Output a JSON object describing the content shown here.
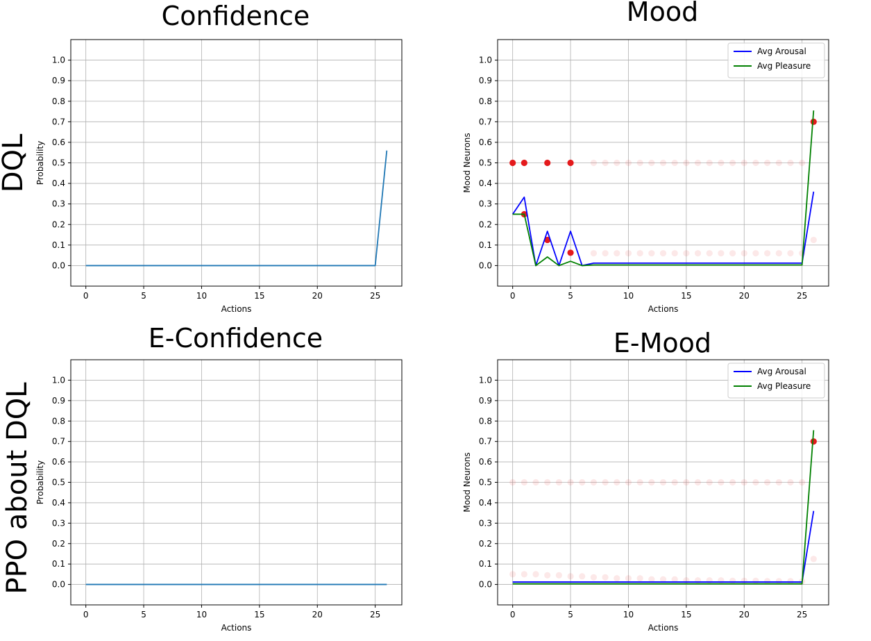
{
  "figure": {
    "row_labels": [
      "DQL",
      "PPO about DQL"
    ]
  },
  "chart_data": [
    {
      "type": "line",
      "title": "Confidence",
      "xlabel": "Actions",
      "ylabel": "Probability",
      "xlim": [
        -1.3,
        27.3
      ],
      "ylim": [
        -0.1,
        1.1
      ],
      "xticks": [
        0,
        5,
        10,
        15,
        20,
        25
      ],
      "yticks": [
        0.0,
        0.1,
        0.2,
        0.3,
        0.4,
        0.5,
        0.6,
        0.7,
        0.8,
        0.9,
        1.0
      ],
      "ytick_labels": [
        "0.0",
        "0.1",
        "0.2",
        "0.3",
        "0.4",
        "0.5",
        "0.6",
        "0.7",
        "0.8",
        "0.9",
        "1.0"
      ],
      "grid": true,
      "series": [
        {
          "color": "#1f77b4",
          "x": [
            0,
            1,
            2,
            3,
            4,
            5,
            6,
            7,
            8,
            9,
            10,
            11,
            12,
            13,
            14,
            15,
            16,
            17,
            18,
            19,
            20,
            21,
            22,
            23,
            24,
            25,
            26
          ],
          "y": [
            0,
            0,
            0,
            0,
            0,
            0,
            0,
            0,
            0,
            0,
            0,
            0,
            0,
            0,
            0,
            0,
            0,
            0,
            0,
            0,
            0,
            0,
            0,
            0,
            0,
            0,
            0.56
          ]
        }
      ]
    },
    {
      "type": "line",
      "title": "Mood",
      "xlabel": "Actions",
      "ylabel": "Mood Neurons",
      "xlim": [
        -1.3,
        27.3
      ],
      "ylim": [
        -0.1,
        1.1
      ],
      "xticks": [
        0,
        5,
        10,
        15,
        20,
        25
      ],
      "yticks": [
        0.0,
        0.1,
        0.2,
        0.3,
        0.4,
        0.5,
        0.6,
        0.7,
        0.8,
        0.9,
        1.0
      ],
      "ytick_labels": [
        "0.0",
        "0.1",
        "0.2",
        "0.3",
        "0.4",
        "0.5",
        "0.6",
        "0.7",
        "0.8",
        "0.9",
        "1.0"
      ],
      "grid": true,
      "legend": "top-right",
      "series": [
        {
          "name": "Avg Arousal",
          "color": "#0000ff",
          "x": [
            0,
            1,
            2,
            3,
            4,
            5,
            6,
            7,
            8,
            9,
            10,
            11,
            12,
            13,
            14,
            15,
            16,
            17,
            18,
            19,
            20,
            21,
            22,
            23,
            24,
            25,
            26
          ],
          "y": [
            0.25,
            0.333,
            0,
            0.167,
            0,
            0.167,
            0,
            0.012,
            0.012,
            0.012,
            0.012,
            0.012,
            0.012,
            0.012,
            0.012,
            0.012,
            0.012,
            0.012,
            0.012,
            0.012,
            0.012,
            0.012,
            0.012,
            0.012,
            0.012,
            0.012,
            0.36
          ]
        },
        {
          "name": "Avg Pleasure",
          "color": "#008000",
          "x": [
            0,
            1,
            2,
            3,
            4,
            5,
            6,
            7,
            8,
            9,
            10,
            11,
            12,
            13,
            14,
            15,
            16,
            17,
            18,
            19,
            20,
            21,
            22,
            23,
            24,
            25,
            26
          ],
          "y": [
            0.25,
            0.25,
            0,
            0.042,
            0,
            0.021,
            0,
            0.003,
            0.003,
            0.003,
            0.003,
            0.003,
            0.003,
            0.003,
            0.003,
            0.003,
            0.003,
            0.003,
            0.003,
            0.003,
            0.003,
            0.003,
            0.003,
            0.003,
            0.003,
            0.003,
            0.755
          ]
        }
      ],
      "scatter": [
        {
          "color": "#e41a1c",
          "points": [
            {
              "x": 0,
              "y": 0.5,
              "alpha": 1
            },
            {
              "x": 1,
              "y": 0.5,
              "alpha": 1
            },
            {
              "x": 3,
              "y": 0.5,
              "alpha": 1
            },
            {
              "x": 5,
              "y": 0.5,
              "alpha": 1
            },
            {
              "x": 1,
              "y": 0.25,
              "alpha": 1
            },
            {
              "x": 3,
              "y": 0.125,
              "alpha": 1
            },
            {
              "x": 5,
              "y": 0.0625,
              "alpha": 1
            },
            {
              "x": 26,
              "y": 0.7,
              "alpha": 1
            },
            {
              "x": 7,
              "y": 0.5,
              "alpha": 0.1
            },
            {
              "x": 8,
              "y": 0.5,
              "alpha": 0.1
            },
            {
              "x": 9,
              "y": 0.5,
              "alpha": 0.1
            },
            {
              "x": 10,
              "y": 0.5,
              "alpha": 0.1
            },
            {
              "x": 11,
              "y": 0.5,
              "alpha": 0.1
            },
            {
              "x": 12,
              "y": 0.5,
              "alpha": 0.1
            },
            {
              "x": 13,
              "y": 0.5,
              "alpha": 0.1
            },
            {
              "x": 14,
              "y": 0.5,
              "alpha": 0.1
            },
            {
              "x": 15,
              "y": 0.5,
              "alpha": 0.1
            },
            {
              "x": 16,
              "y": 0.5,
              "alpha": 0.1
            },
            {
              "x": 17,
              "y": 0.5,
              "alpha": 0.1
            },
            {
              "x": 18,
              "y": 0.5,
              "alpha": 0.1
            },
            {
              "x": 19,
              "y": 0.5,
              "alpha": 0.1
            },
            {
              "x": 20,
              "y": 0.5,
              "alpha": 0.1
            },
            {
              "x": 21,
              "y": 0.5,
              "alpha": 0.1
            },
            {
              "x": 22,
              "y": 0.5,
              "alpha": 0.1
            },
            {
              "x": 23,
              "y": 0.5,
              "alpha": 0.1
            },
            {
              "x": 24,
              "y": 0.5,
              "alpha": 0.1
            },
            {
              "x": 25,
              "y": 0.5,
              "alpha": 0.1
            },
            {
              "x": 7,
              "y": 0.06,
              "alpha": 0.1
            },
            {
              "x": 8,
              "y": 0.06,
              "alpha": 0.1
            },
            {
              "x": 9,
              "y": 0.06,
              "alpha": 0.1
            },
            {
              "x": 10,
              "y": 0.06,
              "alpha": 0.1
            },
            {
              "x": 11,
              "y": 0.06,
              "alpha": 0.1
            },
            {
              "x": 12,
              "y": 0.06,
              "alpha": 0.1
            },
            {
              "x": 13,
              "y": 0.06,
              "alpha": 0.1
            },
            {
              "x": 14,
              "y": 0.06,
              "alpha": 0.1
            },
            {
              "x": 15,
              "y": 0.06,
              "alpha": 0.1
            },
            {
              "x": 16,
              "y": 0.06,
              "alpha": 0.1
            },
            {
              "x": 17,
              "y": 0.06,
              "alpha": 0.1
            },
            {
              "x": 18,
              "y": 0.06,
              "alpha": 0.1
            },
            {
              "x": 19,
              "y": 0.06,
              "alpha": 0.1
            },
            {
              "x": 20,
              "y": 0.06,
              "alpha": 0.1
            },
            {
              "x": 21,
              "y": 0.06,
              "alpha": 0.1
            },
            {
              "x": 22,
              "y": 0.06,
              "alpha": 0.1
            },
            {
              "x": 23,
              "y": 0.06,
              "alpha": 0.1
            },
            {
              "x": 24,
              "y": 0.06,
              "alpha": 0.1
            },
            {
              "x": 25,
              "y": 0.06,
              "alpha": 0.1
            },
            {
              "x": 26,
              "y": 0.125,
              "alpha": 0.1
            }
          ]
        }
      ]
    },
    {
      "type": "line",
      "title": "E-Confidence",
      "xlabel": "Actions",
      "ylabel": "Probability",
      "xlim": [
        -1.3,
        27.3
      ],
      "ylim": [
        -0.1,
        1.1
      ],
      "xticks": [
        0,
        5,
        10,
        15,
        20,
        25
      ],
      "yticks": [
        0.0,
        0.1,
        0.2,
        0.3,
        0.4,
        0.5,
        0.6,
        0.7,
        0.8,
        0.9,
        1.0
      ],
      "ytick_labels": [
        "0.0",
        "0.1",
        "0.2",
        "0.3",
        "0.4",
        "0.5",
        "0.6",
        "0.7",
        "0.8",
        "0.9",
        "1.0"
      ],
      "grid": true,
      "series": [
        {
          "color": "#1f77b4",
          "x": [
            0,
            1,
            2,
            3,
            4,
            5,
            6,
            7,
            8,
            9,
            10,
            11,
            12,
            13,
            14,
            15,
            16,
            17,
            18,
            19,
            20,
            21,
            22,
            23,
            24,
            25,
            26
          ],
          "y": [
            0,
            0,
            0,
            0,
            0,
            0,
            0,
            0,
            0,
            0,
            0,
            0,
            0,
            0,
            0,
            0,
            0,
            0,
            0,
            0,
            0,
            0,
            0,
            0,
            0,
            0,
            0
          ]
        }
      ]
    },
    {
      "type": "line",
      "title": "E-Mood",
      "xlabel": "Actions",
      "ylabel": "Mood Neurons",
      "xlim": [
        -1.3,
        27.3
      ],
      "ylim": [
        -0.1,
        1.1
      ],
      "xticks": [
        0,
        5,
        10,
        15,
        20,
        25
      ],
      "yticks": [
        0.0,
        0.1,
        0.2,
        0.3,
        0.4,
        0.5,
        0.6,
        0.7,
        0.8,
        0.9,
        1.0
      ],
      "ytick_labels": [
        "0.0",
        "0.1",
        "0.2",
        "0.3",
        "0.4",
        "0.5",
        "0.6",
        "0.7",
        "0.8",
        "0.9",
        "1.0"
      ],
      "grid": true,
      "legend": "top-right",
      "series": [
        {
          "name": "Avg Arousal",
          "color": "#0000ff",
          "x": [
            0,
            1,
            2,
            3,
            4,
            5,
            6,
            7,
            8,
            9,
            10,
            11,
            12,
            13,
            14,
            15,
            16,
            17,
            18,
            19,
            20,
            21,
            22,
            23,
            24,
            25,
            26
          ],
          "y": [
            0.012,
            0.012,
            0.012,
            0.012,
            0.012,
            0.012,
            0.012,
            0.012,
            0.012,
            0.012,
            0.012,
            0.012,
            0.012,
            0.012,
            0.012,
            0.012,
            0.012,
            0.012,
            0.012,
            0.012,
            0.012,
            0.012,
            0.012,
            0.012,
            0.012,
            0.012,
            0.36
          ]
        },
        {
          "name": "Avg Pleasure",
          "color": "#008000",
          "x": [
            0,
            1,
            2,
            3,
            4,
            5,
            6,
            7,
            8,
            9,
            10,
            11,
            12,
            13,
            14,
            15,
            16,
            17,
            18,
            19,
            20,
            21,
            22,
            23,
            24,
            25,
            26
          ],
          "y": [
            0.003,
            0.003,
            0.003,
            0.003,
            0.003,
            0.003,
            0.003,
            0.003,
            0.003,
            0.003,
            0.003,
            0.003,
            0.003,
            0.003,
            0.003,
            0.003,
            0.003,
            0.003,
            0.003,
            0.003,
            0.003,
            0.003,
            0.003,
            0.003,
            0.003,
            0.003,
            0.755
          ]
        }
      ],
      "scatter": [
        {
          "color": "#e41a1c",
          "points": [
            {
              "x": 26,
              "y": 0.7,
              "alpha": 1
            },
            {
              "x": 0,
              "y": 0.5,
              "alpha": 0.1
            },
            {
              "x": 1,
              "y": 0.5,
              "alpha": 0.1
            },
            {
              "x": 2,
              "y": 0.5,
              "alpha": 0.1
            },
            {
              "x": 3,
              "y": 0.5,
              "alpha": 0.1
            },
            {
              "x": 4,
              "y": 0.5,
              "alpha": 0.1
            },
            {
              "x": 5,
              "y": 0.5,
              "alpha": 0.1
            },
            {
              "x": 6,
              "y": 0.5,
              "alpha": 0.1
            },
            {
              "x": 7,
              "y": 0.5,
              "alpha": 0.1
            },
            {
              "x": 8,
              "y": 0.5,
              "alpha": 0.1
            },
            {
              "x": 9,
              "y": 0.5,
              "alpha": 0.1
            },
            {
              "x": 10,
              "y": 0.5,
              "alpha": 0.1
            },
            {
              "x": 11,
              "y": 0.5,
              "alpha": 0.1
            },
            {
              "x": 12,
              "y": 0.5,
              "alpha": 0.1
            },
            {
              "x": 13,
              "y": 0.5,
              "alpha": 0.1
            },
            {
              "x": 14,
              "y": 0.5,
              "alpha": 0.1
            },
            {
              "x": 15,
              "y": 0.5,
              "alpha": 0.1
            },
            {
              "x": 16,
              "y": 0.5,
              "alpha": 0.1
            },
            {
              "x": 17,
              "y": 0.5,
              "alpha": 0.1
            },
            {
              "x": 18,
              "y": 0.5,
              "alpha": 0.1
            },
            {
              "x": 19,
              "y": 0.5,
              "alpha": 0.1
            },
            {
              "x": 20,
              "y": 0.5,
              "alpha": 0.1
            },
            {
              "x": 21,
              "y": 0.5,
              "alpha": 0.1
            },
            {
              "x": 22,
              "y": 0.5,
              "alpha": 0.1
            },
            {
              "x": 23,
              "y": 0.5,
              "alpha": 0.1
            },
            {
              "x": 24,
              "y": 0.5,
              "alpha": 0.1
            },
            {
              "x": 25,
              "y": 0.5,
              "alpha": 0.1
            },
            {
              "x": 0,
              "y": 0.05,
              "alpha": 0.1
            },
            {
              "x": 1,
              "y": 0.05,
              "alpha": 0.1
            },
            {
              "x": 2,
              "y": 0.05,
              "alpha": 0.1
            },
            {
              "x": 3,
              "y": 0.045,
              "alpha": 0.1
            },
            {
              "x": 4,
              "y": 0.045,
              "alpha": 0.1
            },
            {
              "x": 5,
              "y": 0.04,
              "alpha": 0.1
            },
            {
              "x": 6,
              "y": 0.04,
              "alpha": 0.1
            },
            {
              "x": 7,
              "y": 0.035,
              "alpha": 0.1
            },
            {
              "x": 8,
              "y": 0.035,
              "alpha": 0.1
            },
            {
              "x": 9,
              "y": 0.03,
              "alpha": 0.1
            },
            {
              "x": 10,
              "y": 0.03,
              "alpha": 0.1
            },
            {
              "x": 11,
              "y": 0.03,
              "alpha": 0.1
            },
            {
              "x": 12,
              "y": 0.025,
              "alpha": 0.1
            },
            {
              "x": 13,
              "y": 0.025,
              "alpha": 0.1
            },
            {
              "x": 14,
              "y": 0.025,
              "alpha": 0.1
            },
            {
              "x": 15,
              "y": 0.02,
              "alpha": 0.1
            },
            {
              "x": 16,
              "y": 0.02,
              "alpha": 0.1
            },
            {
              "x": 17,
              "y": 0.02,
              "alpha": 0.1
            },
            {
              "x": 18,
              "y": 0.02,
              "alpha": 0.1
            },
            {
              "x": 19,
              "y": 0.018,
              "alpha": 0.1
            },
            {
              "x": 20,
              "y": 0.018,
              "alpha": 0.1
            },
            {
              "x": 21,
              "y": 0.018,
              "alpha": 0.1
            },
            {
              "x": 22,
              "y": 0.016,
              "alpha": 0.1
            },
            {
              "x": 23,
              "y": 0.016,
              "alpha": 0.1
            },
            {
              "x": 24,
              "y": 0.016,
              "alpha": 0.1
            },
            {
              "x": 25,
              "y": 0.015,
              "alpha": 0.1
            },
            {
              "x": 26,
              "y": 0.125,
              "alpha": 0.1
            }
          ]
        }
      ]
    }
  ]
}
